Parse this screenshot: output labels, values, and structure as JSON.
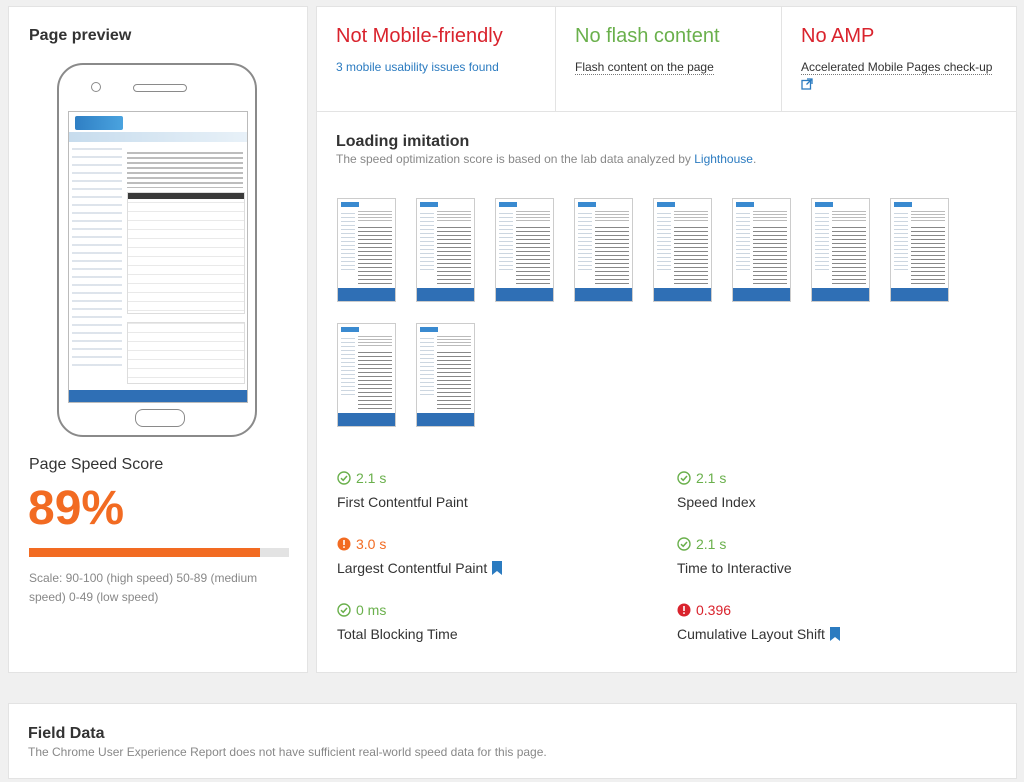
{
  "preview": {
    "title": "Page preview",
    "mini_logo_text": "EmailTray"
  },
  "speed": {
    "title": "Page Speed Score",
    "score": "89%",
    "score_value": 89,
    "score_color": "#f26b22",
    "scale_text": "Scale: 90-100 (high speed) 50-89 (medium speed) 0-49 (low speed)"
  },
  "checks": [
    {
      "title": "Not Mobile-friendly",
      "subtitle": "3 mobile usability issues found",
      "status": "bad"
    },
    {
      "title": "No flash content",
      "subtitle": "Flash content on the page",
      "status": "good"
    },
    {
      "title": "No AMP",
      "subtitle": "Accelerated Mobile Pages check-up",
      "status": "bad"
    }
  ],
  "loading": {
    "title": "Loading imitation",
    "subtitle_prefix": "The speed optimization score is based on the lab data analyzed by",
    "subtitle_link": "Lighthouse",
    "subtitle_suffix": ".",
    "frame_count": 10
  },
  "metrics": [
    {
      "value": "2.1 s",
      "label": "First Contentful Paint",
      "status": "good",
      "bookmark": false
    },
    {
      "value": "2.1 s",
      "label": "Speed Index",
      "status": "good",
      "bookmark": false
    },
    {
      "value": "3.0 s",
      "label": "Largest Contentful Paint",
      "status": "average",
      "bookmark": true
    },
    {
      "value": "2.1 s",
      "label": "Time to Interactive",
      "status": "good",
      "bookmark": false
    },
    {
      "value": "0 ms",
      "label": "Total Blocking Time",
      "status": "good",
      "bookmark": false
    },
    {
      "value": "0.396",
      "label": "Cumulative Layout Shift",
      "status": "bad",
      "bookmark": true
    }
  ],
  "colors": {
    "good": "#6ab04c",
    "average": "#f26b22",
    "bad": "#d9232d",
    "link": "#2b7bc0"
  },
  "field_data": {
    "title": "Field Data",
    "subtitle": "The Chrome User Experience Report does not have sufficient real-world speed data for this page."
  }
}
